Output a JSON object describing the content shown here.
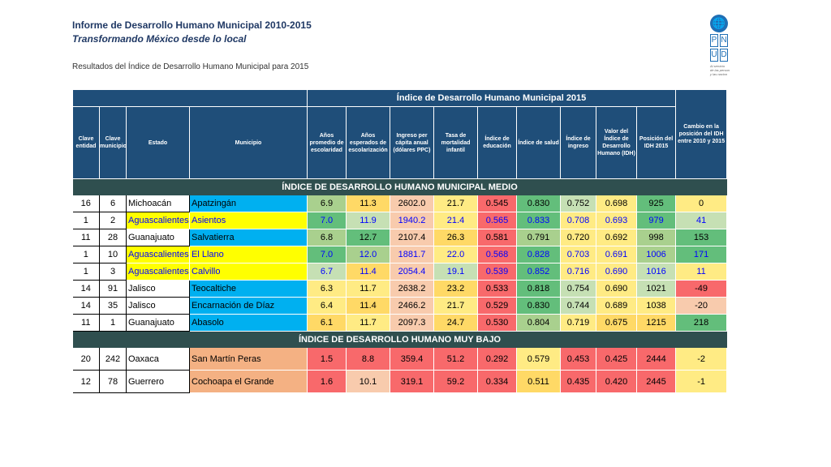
{
  "header": {
    "title": "Informe de Desarrollo Humano Municipal 2010-2015",
    "subtitle": "Transformando México desde lo local",
    "results_caption": "Resultados del Índice de Desarrollo Humano Municipal para 2015"
  },
  "logo": {
    "icon": "un-globe-icon",
    "letters": [
      "P",
      "N",
      "U",
      "D"
    ],
    "tagline": [
      "Al servicio",
      "de las person",
      "y las nacion"
    ]
  },
  "table": {
    "band_title": "Índice de Desarrollo Humano Municipal 2015",
    "columns": [
      "Clave entidad",
      "Clave municipio",
      "Estado",
      "Municipio",
      "Años promedio de escolaridad",
      "Años esperados de escolarización",
      "Ingreso per cápita anual (dólares PPC)",
      "Tasa de mortalidad infantil",
      "Índice de educación",
      "Índice de salud",
      "Índice de ingreso",
      "Valor del Índice de Desarrollo Humano (IDH)",
      "Posición del IDH 2015",
      "Cambio en la posición del IDH entre 2010 y 2015"
    ],
    "sections": [
      {
        "title": "ÍNDICE DE DESARROLLO HUMANO MUNICIPAL MEDIO",
        "rows": [
          {
            "cells": [
              "16",
              "6",
              "Michoacán",
              "Apatzingán",
              "6.9",
              "11.3",
              "2602.0",
              "21.7",
              "0.545",
              "0.830",
              "0.752",
              "0.698",
              "925",
              "0"
            ],
            "colors": [
              "",
              "",
              "",
              "#00b0f0",
              "#a9d08e",
              "#ffd966",
              "#f8cbad",
              "#ffeb84",
              "#f8696b",
              "#63be7b",
              "#c6e0b4",
              "#ffeb84",
              "#63be7b",
              "#ffeb84"
            ],
            "font": "#000000"
          },
          {
            "cells": [
              "1",
              "2",
              "Aguascalientes",
              "Asientos",
              "7.0",
              "11.9",
              "1940.2",
              "21.4",
              "0.565",
              "0.833",
              "0.708",
              "0.693",
              "979",
              "41"
            ],
            "colors": [
              "",
              "",
              "#ffff00",
              "#ffff00",
              "#63be7b",
              "#c6e0b4",
              "#f8cbad",
              "#ffeb84",
              "#f8696b",
              "#63be7b",
              "#ffeb84",
              "#ffeb84",
              "#63be7b",
              "#c6e0b4"
            ],
            "font": "#0000ff"
          },
          {
            "cells": [
              "11",
              "28",
              "Guanajuato",
              "Salvatierra",
              "6.8",
              "12.7",
              "2107.4",
              "26.3",
              "0.581",
              "0.791",
              "0.720",
              "0.692",
              "998",
              "153"
            ],
            "colors": [
              "",
              "",
              "",
              "#00b0f0",
              "#a9d08e",
              "#63be7b",
              "#f8cbad",
              "#ffd966",
              "#f8696b",
              "#a9d08e",
              "#ffeb84",
              "#ffeb84",
              "#a9d08e",
              "#63be7b"
            ],
            "font": "#000000"
          },
          {
            "cells": [
              "1",
              "10",
              "Aguascalientes",
              "El Llano",
              "7.0",
              "12.0",
              "1881.7",
              "22.0",
              "0.568",
              "0.828",
              "0.703",
              "0.691",
              "1006",
              "171"
            ],
            "colors": [
              "",
              "",
              "#ffff00",
              "#ffff00",
              "#63be7b",
              "#a9d08e",
              "#f8cbad",
              "#ffeb84",
              "#f8696b",
              "#63be7b",
              "#ffeb84",
              "#ffeb84",
              "#a9d08e",
              "#63be7b"
            ],
            "font": "#0000ff"
          },
          {
            "cells": [
              "1",
              "3",
              "Aguascalientes",
              "Calvillo",
              "6.7",
              "11.4",
              "2054.4",
              "19.1",
              "0.539",
              "0.852",
              "0.716",
              "0.690",
              "1016",
              "11"
            ],
            "colors": [
              "",
              "",
              "#ffff00",
              "#ffff00",
              "#c6e0b4",
              "#ffd966",
              "#f8cbad",
              "#c6e0b4",
              "#f8696b",
              "#63be7b",
              "#ffeb84",
              "#ffeb84",
              "#c6e0b4",
              "#ffeb84"
            ],
            "font": "#0000ff"
          },
          {
            "cells": [
              "14",
              "91",
              "Jalisco",
              "Teocaltiche",
              "6.3",
              "11.7",
              "2638.2",
              "23.2",
              "0.533",
              "0.818",
              "0.754",
              "0.690",
              "1021",
              "-49"
            ],
            "colors": [
              "",
              "",
              "",
              "#00b0f0",
              "#ffeb84",
              "#ffeb84",
              "#f8cbad",
              "#ffd966",
              "#f8696b",
              "#63be7b",
              "#c6e0b4",
              "#ffeb84",
              "#c6e0b4",
              "#f8696b"
            ],
            "font": "#000000"
          },
          {
            "cells": [
              "14",
              "35",
              "Jalisco",
              "Encarnación de Díaz",
              "6.4",
              "11.4",
              "2466.2",
              "21.7",
              "0.529",
              "0.830",
              "0.744",
              "0.689",
              "1038",
              "-20"
            ],
            "colors": [
              "",
              "",
              "",
              "#00b0f0",
              "#ffeb84",
              "#ffd966",
              "#f8cbad",
              "#ffeb84",
              "#f8696b",
              "#63be7b",
              "#c6e0b4",
              "#ffeb84",
              "#ffeb84",
              "#f8cbad"
            ],
            "font": "#000000"
          },
          {
            "cells": [
              "11",
              "1",
              "Guanajuato",
              "Abasolo",
              "6.1",
              "11.7",
              "2097.3",
              "24.7",
              "0.530",
              "0.804",
              "0.719",
              "0.675",
              "1215",
              "218"
            ],
            "colors": [
              "",
              "",
              "",
              "#00b0f0",
              "#ffd966",
              "#ffeb84",
              "#f8cbad",
              "#ffd966",
              "#f8696b",
              "#a9d08e",
              "#ffeb84",
              "#ffd966",
              "#ffd966",
              "#63be7b"
            ],
            "font": "#000000"
          }
        ]
      },
      {
        "title": "ÍNDICE DE DESARROLLO HUMANO MUY BAJO",
        "rows": [
          {
            "cells": [
              "20",
              "242",
              "Oaxaca",
              "San Martín Peras",
              "1.5",
              "8.8",
              "359.4",
              "51.2",
              "0.292",
              "0.579",
              "0.453",
              "0.425",
              "2444",
              "-2"
            ],
            "colors": [
              "",
              "",
              "",
              "#f4b183",
              "#f8696b",
              "#f8696b",
              "#f8696b",
              "#f8696b",
              "#f8696b",
              "#ffeb84",
              "#f8696b",
              "#f8696b",
              "#f8696b",
              "#ffeb84"
            ],
            "font": "#000000"
          },
          {
            "cells": [
              "12",
              "78",
              "Guerrero",
              "Cochoapa el Grande",
              "1.6",
              "10.1",
              "319.1",
              "59.2",
              "0.334",
              "0.511",
              "0.435",
              "0.420",
              "2445",
              "-1"
            ],
            "colors": [
              "",
              "",
              "",
              "#f4b183",
              "#f8696b",
              "#f8cbad",
              "#f8696b",
              "#f8696b",
              "#f8696b",
              "#ffd966",
              "#f8696b",
              "#f8696b",
              "#f8696b",
              "#ffeb84"
            ],
            "font": "#000000"
          }
        ]
      }
    ]
  }
}
